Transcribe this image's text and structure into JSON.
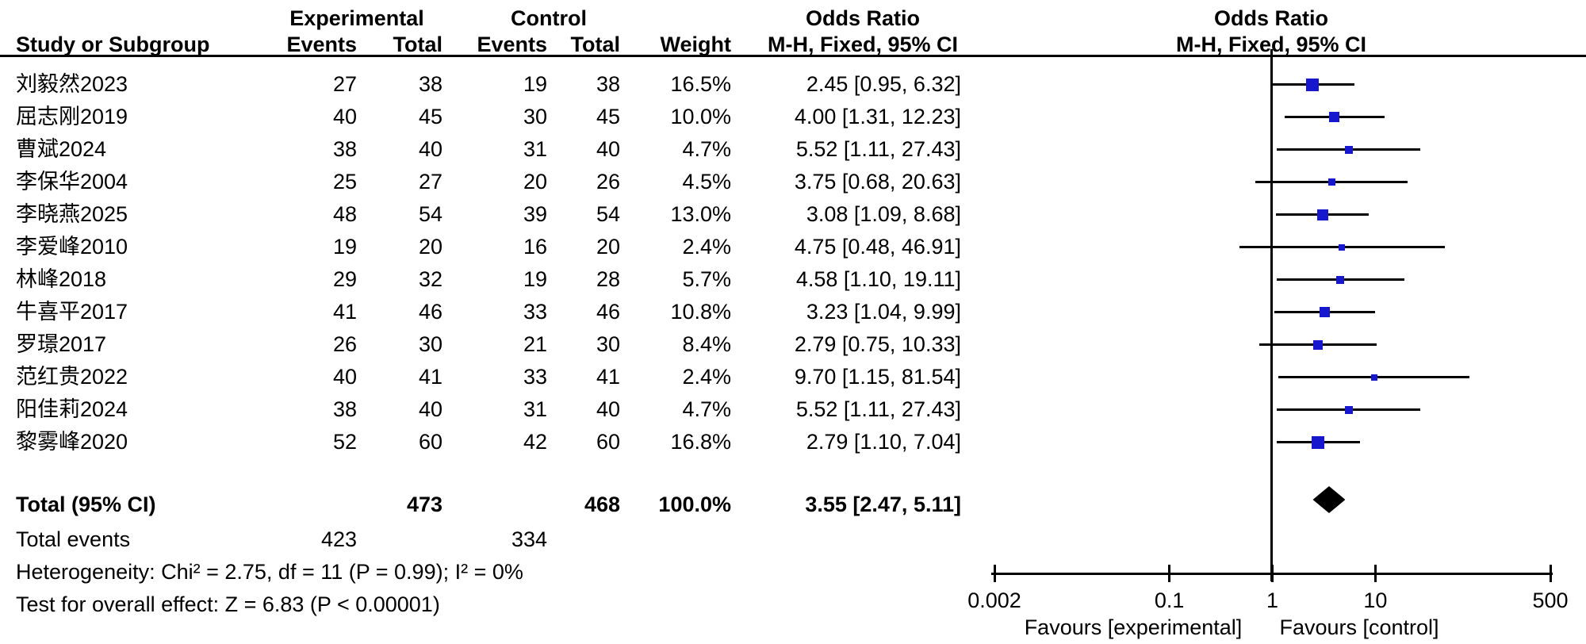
{
  "header": {
    "study_col": "Study or Subgroup",
    "group_experimental": "Experimental",
    "group_control": "Control",
    "events_col": "Events",
    "total_col": "Total",
    "events_col2": "Events",
    "total_col2": "Total",
    "weight_col": "Weight",
    "or_text_title": "Odds Ratio",
    "or_text_sub": "M-H, Fixed, 95% CI",
    "or_plot_title": "Odds Ratio",
    "or_plot_sub": "M-H, Fixed, 95% CI"
  },
  "studies": [
    {
      "name": "刘毅然2023",
      "e_events": 27,
      "e_total": 38,
      "c_events": 19,
      "c_total": 38,
      "weight": "16.5%",
      "weight_pct": 16.5,
      "or_label": "2.45 [0.95, 6.32]",
      "or": 2.45,
      "lo": 0.95,
      "hi": 6.32
    },
    {
      "name": "屈志刚2019",
      "e_events": 40,
      "e_total": 45,
      "c_events": 30,
      "c_total": 45,
      "weight": "10.0%",
      "weight_pct": 10.0,
      "or_label": "4.00 [1.31, 12.23]",
      "or": 4.0,
      "lo": 1.31,
      "hi": 12.23
    },
    {
      "name": "曹斌2024",
      "e_events": 38,
      "e_total": 40,
      "c_events": 31,
      "c_total": 40,
      "weight": "4.7%",
      "weight_pct": 4.7,
      "or_label": "5.52 [1.11, 27.43]",
      "or": 5.52,
      "lo": 1.11,
      "hi": 27.43
    },
    {
      "name": "李保华2004",
      "e_events": 25,
      "e_total": 27,
      "c_events": 20,
      "c_total": 26,
      "weight": "4.5%",
      "weight_pct": 4.5,
      "or_label": "3.75 [0.68, 20.63]",
      "or": 3.75,
      "lo": 0.68,
      "hi": 20.63
    },
    {
      "name": "李晓燕2025",
      "e_events": 48,
      "e_total": 54,
      "c_events": 39,
      "c_total": 54,
      "weight": "13.0%",
      "weight_pct": 13.0,
      "or_label": "3.08 [1.09, 8.68]",
      "or": 3.08,
      "lo": 1.09,
      "hi": 8.68
    },
    {
      "name": "李爱峰2010",
      "e_events": 19,
      "e_total": 20,
      "c_events": 16,
      "c_total": 20,
      "weight": "2.4%",
      "weight_pct": 2.4,
      "or_label": "4.75 [0.48, 46.91]",
      "or": 4.75,
      "lo": 0.48,
      "hi": 46.91
    },
    {
      "name": "林峰2018",
      "e_events": 29,
      "e_total": 32,
      "c_events": 19,
      "c_total": 28,
      "weight": "5.7%",
      "weight_pct": 5.7,
      "or_label": "4.58 [1.10, 19.11]",
      "or": 4.58,
      "lo": 1.1,
      "hi": 19.11
    },
    {
      "name": "牛喜平2017",
      "e_events": 41,
      "e_total": 46,
      "c_events": 33,
      "c_total": 46,
      "weight": "10.8%",
      "weight_pct": 10.8,
      "or_label": "3.23 [1.04, 9.99]",
      "or": 3.23,
      "lo": 1.04,
      "hi": 9.99
    },
    {
      "name": "罗璟2017",
      "e_events": 26,
      "e_total": 30,
      "c_events": 21,
      "c_total": 30,
      "weight": "8.4%",
      "weight_pct": 8.4,
      "or_label": "2.79 [0.75, 10.33]",
      "or": 2.79,
      "lo": 0.75,
      "hi": 10.33
    },
    {
      "name": "范红贵2022",
      "e_events": 40,
      "e_total": 41,
      "c_events": 33,
      "c_total": 41,
      "weight": "2.4%",
      "weight_pct": 2.4,
      "or_label": "9.70 [1.15, 81.54]",
      "or": 9.7,
      "lo": 1.15,
      "hi": 81.54
    },
    {
      "name": "阳佳莉2024",
      "e_events": 38,
      "e_total": 40,
      "c_events": 31,
      "c_total": 40,
      "weight": "4.7%",
      "weight_pct": 4.7,
      "or_label": "5.52 [1.11, 27.43]",
      "or": 5.52,
      "lo": 1.11,
      "hi": 27.43
    },
    {
      "name": "黎雾峰2020",
      "e_events": 52,
      "e_total": 60,
      "c_events": 42,
      "c_total": 60,
      "weight": "16.8%",
      "weight_pct": 16.8,
      "or_label": "2.79 [1.10, 7.04]",
      "or": 2.79,
      "lo": 1.1,
      "hi": 7.04
    }
  ],
  "total": {
    "label": "Total (95% CI)",
    "e_total": 473,
    "c_total": 468,
    "weight": "100.0%",
    "or_label": "3.55 [2.47, 5.11]",
    "or": 3.55,
    "lo": 2.47,
    "hi": 5.11
  },
  "total_events": {
    "label": "Total events",
    "experimental": 423,
    "control": 334
  },
  "footer": {
    "heterogeneity": "Heterogeneity: Chi² = 2.75, df = 11 (P = 0.99); I² = 0%",
    "overall_effect": "Test for overall effect: Z = 6.83 (P < 0.00001)"
  },
  "axis": {
    "min": 0.002,
    "max": 500,
    "ticks": [
      0.002,
      0.1,
      1,
      10,
      500
    ],
    "tick_labels": [
      "0.002",
      "0.1",
      "1",
      "10",
      "500"
    ],
    "reference_line": 1,
    "favours_left": "Favours [experimental]",
    "favours_right": "Favours [control]"
  },
  "colors": {
    "square_blue": "#1717CD",
    "ink": "#000000",
    "background": "#FFFFFF"
  },
  "chart_data": {
    "type": "scatter",
    "subtype": "forest-plot",
    "title": "Odds Ratio",
    "subtitle": "M-H, Fixed, 95% CI",
    "x_scale": "log",
    "xlim": [
      0.002,
      500
    ],
    "x_ticks": [
      0.002,
      0.1,
      1,
      10,
      500
    ],
    "reference_line_x": 1,
    "xlabel_left": "Favours [experimental]",
    "xlabel_right": "Favours [control]",
    "series": [
      {
        "name": "studies",
        "points": [
          {
            "label": "刘毅然2023",
            "or": 2.45,
            "ci": [
              0.95,
              6.32
            ],
            "weight_pct": 16.5
          },
          {
            "label": "屈志刚2019",
            "or": 4.0,
            "ci": [
              1.31,
              12.23
            ],
            "weight_pct": 10.0
          },
          {
            "label": "曹斌2024",
            "or": 5.52,
            "ci": [
              1.11,
              27.43
            ],
            "weight_pct": 4.7
          },
          {
            "label": "李保华2004",
            "or": 3.75,
            "ci": [
              0.68,
              20.63
            ],
            "weight_pct": 4.5
          },
          {
            "label": "李晓燕2025",
            "or": 3.08,
            "ci": [
              1.09,
              8.68
            ],
            "weight_pct": 13.0
          },
          {
            "label": "李爱峰2010",
            "or": 4.75,
            "ci": [
              0.48,
              46.91
            ],
            "weight_pct": 2.4
          },
          {
            "label": "林峰2018",
            "or": 4.58,
            "ci": [
              1.1,
              19.11
            ],
            "weight_pct": 5.7
          },
          {
            "label": "牛喜平2017",
            "or": 3.23,
            "ci": [
              1.04,
              9.99
            ],
            "weight_pct": 10.8
          },
          {
            "label": "罗璟2017",
            "or": 2.79,
            "ci": [
              0.75,
              10.33
            ],
            "weight_pct": 8.4
          },
          {
            "label": "范红贵2022",
            "or": 9.7,
            "ci": [
              1.15,
              81.54
            ],
            "weight_pct": 2.4
          },
          {
            "label": "阳佳莉2024",
            "or": 5.52,
            "ci": [
              1.11,
              27.43
            ],
            "weight_pct": 4.7
          },
          {
            "label": "黎雾峰2020",
            "or": 2.79,
            "ci": [
              1.1,
              7.04
            ],
            "weight_pct": 16.8
          }
        ]
      }
    ],
    "summary": {
      "label": "Total (95% CI)",
      "or": 3.55,
      "ci": [
        2.47,
        5.11
      ],
      "weight_pct": 100.0
    }
  }
}
